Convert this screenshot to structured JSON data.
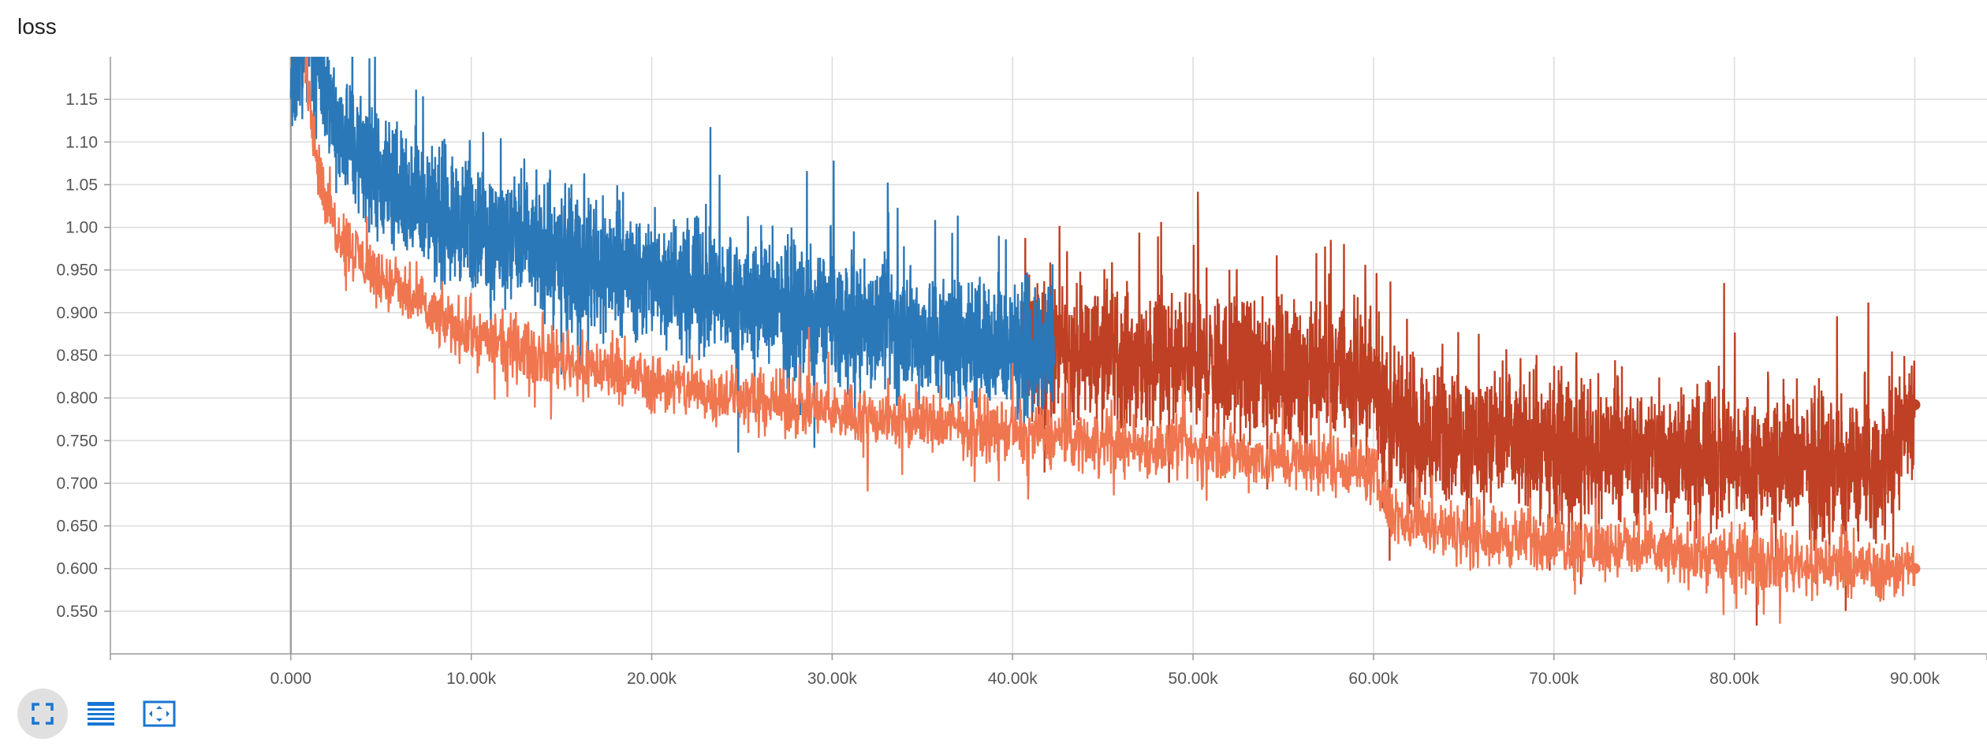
{
  "title": "loss",
  "colors": {
    "blue": "#2b78b8",
    "dark_orange": "#bf4024",
    "light_orange": "#f07650",
    "grid": "#dcdcdc",
    "axis": "#999999"
  },
  "toolbar": {
    "buttons": [
      {
        "name": "fullscreen-button",
        "icon": "expand-corners-icon",
        "active": true
      },
      {
        "name": "toggle-log-scale-button",
        "icon": "lines-list-icon",
        "active": false
      },
      {
        "name": "fit-domain-button",
        "icon": "fit-to-data-icon",
        "active": false
      }
    ]
  },
  "chart_data": {
    "type": "line",
    "title": "loss",
    "xlabel": "",
    "ylabel": "",
    "xlim": [
      -10000,
      94000
    ],
    "ylim": [
      0.5,
      1.2
    ],
    "x_ticks": [
      0,
      10000,
      20000,
      30000,
      40000,
      50000,
      60000,
      70000,
      80000,
      90000
    ],
    "x_tick_labels": [
      "0.000",
      "10.00k",
      "20.00k",
      "30.00k",
      "40.00k",
      "50.00k",
      "60.00k",
      "70.00k",
      "80.00k",
      "90.00k"
    ],
    "y_ticks": [
      0.55,
      0.6,
      0.65,
      0.7,
      0.75,
      0.8,
      0.85,
      0.9,
      0.95,
      1.0,
      1.05,
      1.1,
      1.15
    ],
    "y_tick_labels": [
      "0.550",
      "0.600",
      "0.650",
      "0.700",
      "0.750",
      "0.800",
      "0.850",
      "0.900",
      "0.950",
      "1.00",
      "1.05",
      "1.10",
      "1.15"
    ],
    "grid": true,
    "legend": "none",
    "series": [
      {
        "color": "#f07650",
        "x": [
          800,
          1500,
          2000,
          3000,
          4000,
          5000,
          6000,
          7000,
          8000,
          10000,
          12000,
          15000,
          18000,
          20000,
          22000,
          25000,
          28000,
          30000,
          33000,
          35000,
          38000,
          40000,
          42000,
          45000,
          48000,
          50000,
          52000,
          55000,
          57000,
          59000,
          60000,
          61000,
          62000,
          64000,
          66000,
          70000,
          75000,
          80000,
          85000,
          88000,
          90000
        ],
        "y": [
          1.2,
          1.07,
          1.02,
          0.985,
          0.96,
          0.94,
          0.925,
          0.91,
          0.895,
          0.875,
          0.86,
          0.845,
          0.83,
          0.82,
          0.81,
          0.8,
          0.79,
          0.785,
          0.775,
          0.77,
          0.765,
          0.76,
          0.755,
          0.748,
          0.742,
          0.738,
          0.734,
          0.728,
          0.724,
          0.72,
          0.71,
          0.665,
          0.655,
          0.645,
          0.64,
          0.63,
          0.62,
          0.612,
          0.605,
          0.6,
          0.6
        ],
        "noise": 0.022
      },
      {
        "color": "#2b78b8",
        "x": [
          0,
          300,
          600,
          1000,
          1500,
          2000,
          3000,
          4000,
          5000,
          6000,
          8000,
          10000,
          12000,
          15000,
          18000,
          20000,
          23000,
          26000,
          30000,
          33000,
          36000,
          40000,
          42300
        ],
        "y": [
          1.19,
          1.17,
          1.2,
          1.22,
          1.22,
          1.15,
          1.11,
          1.08,
          1.06,
          1.045,
          1.02,
          1.0,
          0.985,
          0.965,
          0.95,
          0.94,
          0.925,
          0.91,
          0.895,
          0.885,
          0.87,
          0.86,
          0.855
        ],
        "noise": 0.045
      },
      {
        "color": "#bf4024",
        "x": [
          40500,
          42300,
          45000,
          48000,
          50000,
          53000,
          56000,
          59000,
          60000,
          61000,
          62000,
          65000,
          70000,
          75000,
          80000,
          85000,
          88000,
          90000
        ],
        "y": [
          0.86,
          0.855,
          0.85,
          0.845,
          0.84,
          0.836,
          0.832,
          0.828,
          0.82,
          0.77,
          0.76,
          0.752,
          0.744,
          0.735,
          0.727,
          0.72,
          0.715,
          0.792
        ],
        "noise": 0.048
      }
    ]
  }
}
